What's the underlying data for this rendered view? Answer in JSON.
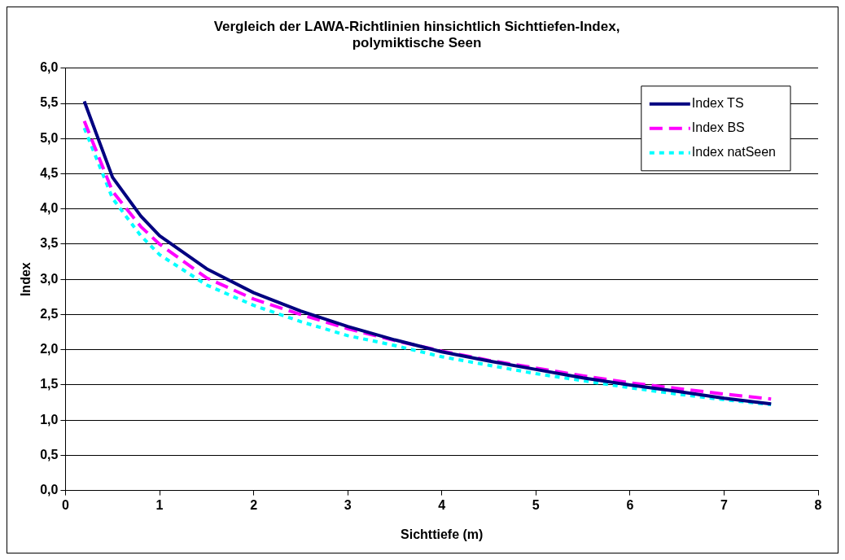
{
  "chart_data": {
    "type": "line",
    "title": [
      "Vergleich der LAWA-Richtlinien hinsichtlich Sichttiefen-Index,",
      "polymiktische Seen"
    ],
    "xlabel": "Sichttiefe (m)",
    "ylabel": "Index",
    "x": [
      0.2,
      0.5,
      0.8,
      1,
      1.5,
      2,
      2.5,
      3,
      3.5,
      4,
      4.5,
      5,
      5.5,
      6,
      6.5,
      7,
      7.5
    ],
    "series": [
      {
        "name": "Index TS",
        "color": "#000080",
        "line_style": "solid",
        "values": [
          5.53,
          4.45,
          3.9,
          3.62,
          3.15,
          2.81,
          2.55,
          2.33,
          2.14,
          1.97,
          1.84,
          1.72,
          1.6,
          1.5,
          1.41,
          1.31,
          1.23
        ]
      },
      {
        "name": "Index BS",
        "color": "#ff00ff",
        "line_style": "dashed",
        "values": [
          5.25,
          4.25,
          3.75,
          3.5,
          3.02,
          2.72,
          2.5,
          2.3,
          2.13,
          1.98,
          1.85,
          1.74,
          1.63,
          1.53,
          1.45,
          1.37,
          1.3
        ]
      },
      {
        "name": "Index natSeen",
        "color": "#00ffff",
        "line_style": "dotted",
        "values": [
          5.15,
          4.15,
          3.62,
          3.35,
          2.92,
          2.63,
          2.4,
          2.2,
          2.06,
          1.9,
          1.78,
          1.66,
          1.56,
          1.46,
          1.37,
          1.29,
          1.22
        ]
      }
    ],
    "xlim": [
      0,
      8
    ],
    "xticks": [
      0,
      1,
      2,
      3,
      4,
      5,
      6,
      7,
      8
    ],
    "ylim": [
      0,
      6
    ],
    "yticks": [
      {
        "value": 0,
        "label": "0,0"
      },
      {
        "value": 0.5,
        "label": "0,5"
      },
      {
        "value": 1,
        "label": "1,0"
      },
      {
        "value": 1.5,
        "label": "1,5"
      },
      {
        "value": 2,
        "label": "2,0"
      },
      {
        "value": 2.5,
        "label": "2,5"
      },
      {
        "value": 3,
        "label": "3,0"
      },
      {
        "value": 3.5,
        "label": "3,5"
      },
      {
        "value": 4,
        "label": "4,0"
      },
      {
        "value": 4.5,
        "label": "4,5"
      },
      {
        "value": 5,
        "label": "5,0"
      },
      {
        "value": 5.5,
        "label": "5,5"
      },
      {
        "value": 6,
        "label": "6,0"
      }
    ],
    "grid": "y",
    "legend": "top right",
    "marker": "none"
  }
}
